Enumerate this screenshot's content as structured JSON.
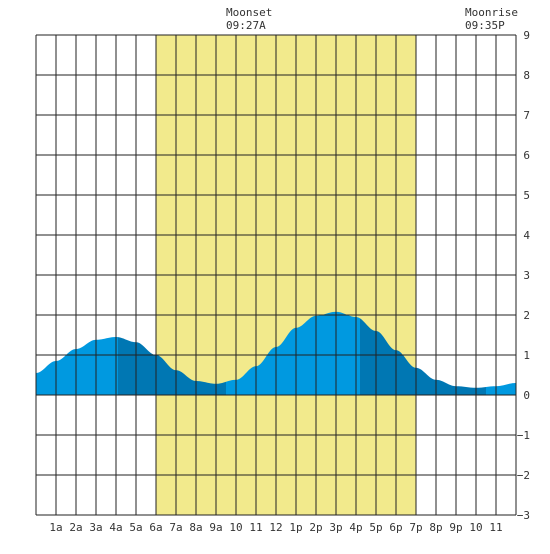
{
  "header": {
    "moonset_label": "Moonset",
    "moonset_time": "09:27A",
    "moonrise_label": "Moonrise",
    "moonrise_time": "09:35P"
  },
  "colors": {
    "daylight": "#f2ea8c",
    "tide_light": "#0099e0",
    "tide_dark": "#0077b3",
    "grid": "#222222",
    "background": "#ffffff"
  },
  "chart_data": {
    "type": "area",
    "title": "",
    "xlabel": "",
    "ylabel": "",
    "xlim": [
      0,
      24
    ],
    "ylim": [
      -3,
      9
    ],
    "grid": true,
    "x_ticks": [
      {
        "x": 1,
        "label": "1a"
      },
      {
        "x": 2,
        "label": "2a"
      },
      {
        "x": 3,
        "label": "3a"
      },
      {
        "x": 4,
        "label": "4a"
      },
      {
        "x": 5,
        "label": "5a"
      },
      {
        "x": 6,
        "label": "6a"
      },
      {
        "x": 7,
        "label": "7a"
      },
      {
        "x": 8,
        "label": "8a"
      },
      {
        "x": 9,
        "label": "9a"
      },
      {
        "x": 10,
        "label": "10"
      },
      {
        "x": 11,
        "label": "11"
      },
      {
        "x": 12,
        "label": "12"
      },
      {
        "x": 13,
        "label": "1p"
      },
      {
        "x": 14,
        "label": "2p"
      },
      {
        "x": 15,
        "label": "3p"
      },
      {
        "x": 16,
        "label": "4p"
      },
      {
        "x": 17,
        "label": "5p"
      },
      {
        "x": 18,
        "label": "6p"
      },
      {
        "x": 19,
        "label": "7p"
      },
      {
        "x": 20,
        "label": "8p"
      },
      {
        "x": 21,
        "label": "9p"
      },
      {
        "x": 22,
        "label": "10"
      },
      {
        "x": 23,
        "label": "11"
      }
    ],
    "y_ticks": [
      9,
      8,
      7,
      6,
      5,
      4,
      3,
      2,
      1,
      0,
      -1,
      -2,
      -3
    ],
    "daylight": {
      "start": 6,
      "end": 19
    },
    "moonset": 9.45,
    "moonrise": 21.58,
    "tide": {
      "x": [
        0,
        1,
        2,
        3,
        4,
        5,
        6,
        7,
        8,
        9,
        10,
        11,
        12,
        13,
        14,
        15,
        16,
        17,
        18,
        19,
        20,
        21,
        22,
        23,
        24
      ],
      "y": [
        0.55,
        0.85,
        1.15,
        1.38,
        1.45,
        1.32,
        1.0,
        0.62,
        0.35,
        0.28,
        0.38,
        0.72,
        1.2,
        1.68,
        1.98,
        2.08,
        1.95,
        1.6,
        1.12,
        0.68,
        0.38,
        0.22,
        0.18,
        0.22,
        0.3
      ]
    },
    "tide_extremes": [
      {
        "type": "high",
        "x": 4.1,
        "y": 1.45
      },
      {
        "type": "low",
        "x": 9.5,
        "y": 0.28
      },
      {
        "type": "high",
        "x": 16.2,
        "y": 2.08
      },
      {
        "type": "low",
        "x": 22.5,
        "y": 0.18
      }
    ]
  }
}
